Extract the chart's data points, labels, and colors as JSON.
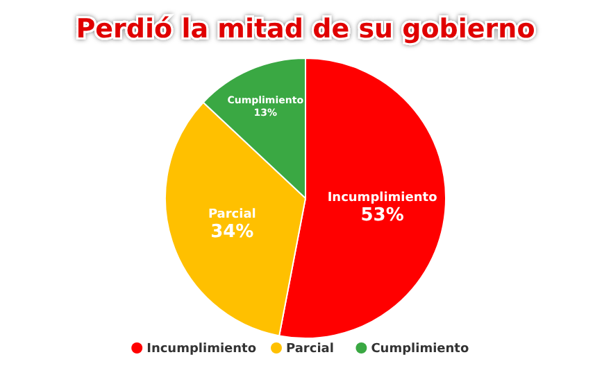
{
  "chart_data": {
    "type": "pie",
    "title": "Perdió la mitad de su gobierno",
    "categories": [
      "Incumplimiento",
      "Parcial",
      "Cumplimiento"
    ],
    "values": [
      53,
      34,
      13
    ],
    "colors": [
      "#ff0000",
      "#ffc000",
      "#3aa843"
    ],
    "value_labels": [
      "53%",
      "34%",
      "13%"
    ],
    "legend": "bottom"
  }
}
